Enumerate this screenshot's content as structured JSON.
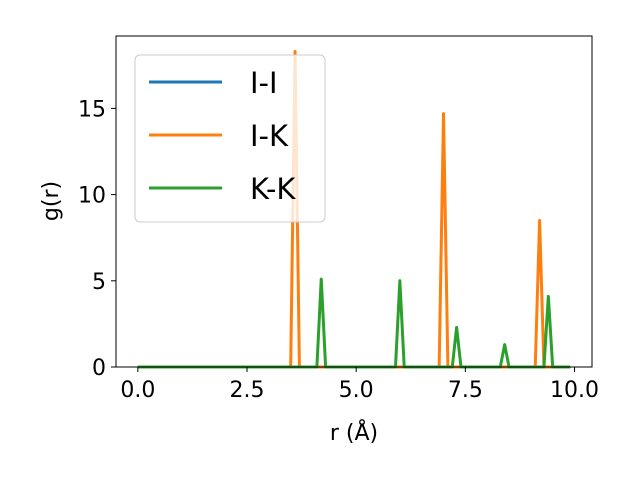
{
  "chart_data": {
    "type": "line",
    "title": "",
    "xlabel": "r (Å)",
    "ylabel": "g(r)",
    "xlim": [
      -0.5,
      10.4
    ],
    "ylim": [
      0,
      19.2
    ],
    "xticks": [
      0.0,
      2.5,
      5.0,
      7.5,
      10.0
    ],
    "xtick_labels": [
      "0.0",
      "2.5",
      "5.0",
      "7.5",
      "10.0"
    ],
    "yticks": [
      0,
      5,
      10,
      15
    ],
    "ytick_labels": [
      "0",
      "5",
      "10",
      "15"
    ],
    "grid": false,
    "legend_position": "top-left",
    "series": [
      {
        "name": "I-I",
        "color": "#1f77b4",
        "x": [
          0.0,
          9.9
        ],
        "y": [
          0,
          0
        ]
      },
      {
        "name": "I-K",
        "color": "#ff7f0e",
        "x": [
          0.0,
          3.5,
          3.6,
          3.7,
          6.9,
          7.0,
          7.1,
          9.1,
          9.2,
          9.3,
          9.9
        ],
        "y": [
          0,
          0,
          18.3,
          0,
          0,
          14.7,
          0,
          0,
          8.5,
          0,
          0
        ]
      },
      {
        "name": "K-K",
        "color": "#2ca02c",
        "x": [
          0.0,
          4.1,
          4.2,
          4.3,
          5.9,
          6.0,
          6.1,
          7.2,
          7.3,
          7.4,
          8.3,
          8.4,
          8.5,
          9.3,
          9.4,
          9.5,
          9.9
        ],
        "y": [
          0,
          0,
          5.1,
          0,
          0,
          5.0,
          0,
          0,
          2.3,
          0,
          0,
          1.3,
          0,
          0,
          4.1,
          0,
          0
        ]
      }
    ]
  }
}
